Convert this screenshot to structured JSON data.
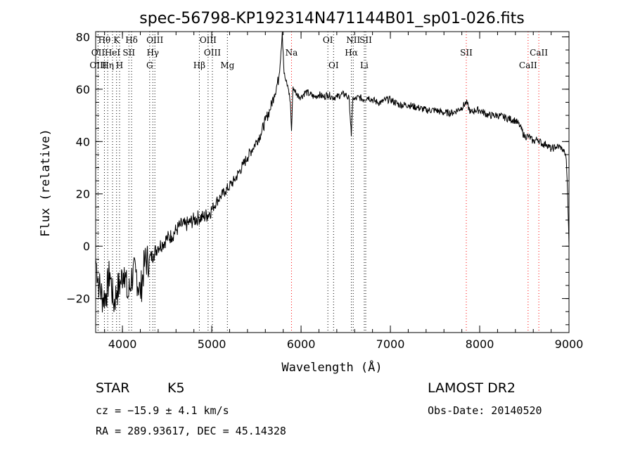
{
  "chart_data": {
    "type": "line",
    "title": "spec-56798-KP192314N471144B01_sp01-026.fits",
    "xlabel": "Wavelength (Å)",
    "ylabel": "Flux (relative)",
    "xlim": [
      3700,
      9000
    ],
    "ylim": [
      -33,
      82
    ],
    "x_ticks": [
      4000,
      5000,
      6000,
      7000,
      8000,
      9000
    ],
    "y_ticks": [
      -20,
      0,
      20,
      40,
      60,
      80
    ],
    "grid": false,
    "series": [
      {
        "x": [
          3700,
          3740,
          3780,
          3820,
          3860,
          3900,
          3940,
          3980,
          4020,
          4060,
          4100,
          4150,
          4200,
          4250,
          4300,
          4350,
          4400,
          4450,
          4500,
          4550,
          4600,
          4650,
          4700,
          4750,
          4800,
          4850,
          4900,
          4950,
          5000,
          5050,
          5100,
          5150,
          5200,
          5250,
          5300,
          5350,
          5400,
          5450,
          5500,
          5550,
          5600,
          5650,
          5700,
          5750,
          5790,
          5810,
          5830,
          5860,
          5880,
          5893,
          5910,
          5950,
          6000,
          6050,
          6100,
          6150,
          6200,
          6250,
          6300,
          6350,
          6400,
          6450,
          6500,
          6540,
          6563,
          6580,
          6600,
          6650,
          6700,
          6750,
          6800,
          6850,
          6900,
          6950,
          7000,
          7100,
          7200,
          7300,
          7400,
          7500,
          7600,
          7700,
          7800,
          7850,
          7900,
          7950,
          8000,
          8100,
          8200,
          8300,
          8400,
          8450,
          8500,
          8550,
          8600,
          8650,
          8700,
          8750,
          8800,
          8850,
          8900,
          8950,
          8970,
          8985,
          9000
        ],
        "y": [
          -5,
          -15,
          -20,
          -18,
          -10,
          -22,
          -17,
          -14,
          -8,
          -20,
          -12,
          -10,
          -18,
          -6,
          -5,
          -3,
          0,
          1,
          3,
          4,
          6,
          8,
          8,
          9,
          10,
          11,
          11,
          12,
          14,
          17,
          19,
          21,
          23,
          25,
          28,
          31,
          34,
          37,
          40,
          43,
          48,
          52,
          58,
          64,
          82,
          66,
          63,
          60,
          55,
          44,
          61,
          58,
          57,
          59,
          58,
          57,
          58,
          57,
          58,
          57,
          57,
          58,
          58,
          56,
          42,
          57,
          56,
          57,
          56,
          57,
          56,
          55,
          55,
          56,
          56,
          54,
          54,
          53,
          52,
          52,
          51,
          51,
          53,
          55,
          51,
          52,
          52,
          50,
          50,
          49,
          48,
          46,
          42,
          42,
          40,
          41,
          39,
          39,
          37,
          38,
          38,
          36,
          33,
          20,
          0
        ]
      }
    ],
    "spectral_lines": [
      {
        "label": "Hθ",
        "wavelength": 3798,
        "row": 1,
        "color": "#000000"
      },
      {
        "label": "K",
        "wavelength": 3934,
        "row": 1,
        "color": "#000000"
      },
      {
        "label": "Hδ",
        "wavelength": 4102,
        "row": 1,
        "color": "#000000"
      },
      {
        "label": "OIII",
        "wavelength": 4363,
        "row": 1,
        "color": "#000000"
      },
      {
        "label": "OIII",
        "wavelength": 4959,
        "row": 1,
        "color": "#000000"
      },
      {
        "label": "OI",
        "wavelength": 6300,
        "row": 1,
        "color": "#000000"
      },
      {
        "label": "NII",
        "wavelength": 6584,
        "row": 1,
        "color": "#000000"
      },
      {
        "label": "SII",
        "wavelength": 6724,
        "row": 1,
        "color": "#000000"
      },
      {
        "label": "OII",
        "wavelength": 3727,
        "row": 2,
        "color": "#000000"
      },
      {
        "label": "HeI",
        "wavelength": 3889,
        "row": 2,
        "color": "#000000"
      },
      {
        "label": "SII",
        "wavelength": 4072,
        "row": 2,
        "color": "#000000"
      },
      {
        "label": "Hγ",
        "wavelength": 4340,
        "row": 2,
        "color": "#000000"
      },
      {
        "label": "OIII",
        "wavelength": 5007,
        "row": 2,
        "color": "#000000"
      },
      {
        "label": "Na",
        "wavelength": 5893,
        "row": 2,
        "color": "#ff0000"
      },
      {
        "label": "Hα",
        "wavelength": 6563,
        "row": 2,
        "color": "#000000"
      },
      {
        "label": "SII",
        "wavelength": 7850,
        "row": 2,
        "color": "#ff0000"
      },
      {
        "label": "CaII",
        "wavelength": 8662,
        "row": 2,
        "color": "#ff0000"
      },
      {
        "label": "OIII",
        "wavelength": 3727,
        "row": 3,
        "color": "#000000"
      },
      {
        "label": "Hη",
        "wavelength": 3835,
        "row": 3,
        "color": "#000000"
      },
      {
        "label": "H",
        "wavelength": 3968,
        "row": 3,
        "color": "#000000"
      },
      {
        "label": "G",
        "wavelength": 4305,
        "row": 3,
        "color": "#000000"
      },
      {
        "label": "Hβ",
        "wavelength": 4861,
        "row": 3,
        "color": "#000000"
      },
      {
        "label": "Mg",
        "wavelength": 5175,
        "row": 3,
        "color": "#000000"
      },
      {
        "label": "OI",
        "wavelength": 6364,
        "row": 3,
        "color": "#000000"
      },
      {
        "label": "Li",
        "wavelength": 6708,
        "row": 3,
        "color": "#000000"
      },
      {
        "label": "CaII",
        "wavelength": 8542,
        "row": 3,
        "color": "#ff0000"
      }
    ]
  },
  "info": {
    "object_class": "STAR",
    "subclass": "K5",
    "survey": "LAMOST DR2",
    "cz": "cz = −15.9 ± 4.1 km/s",
    "obs_date": "Obs-Date: 20140520",
    "coords": "RA = 289.93617, DEC =  45.14328"
  }
}
